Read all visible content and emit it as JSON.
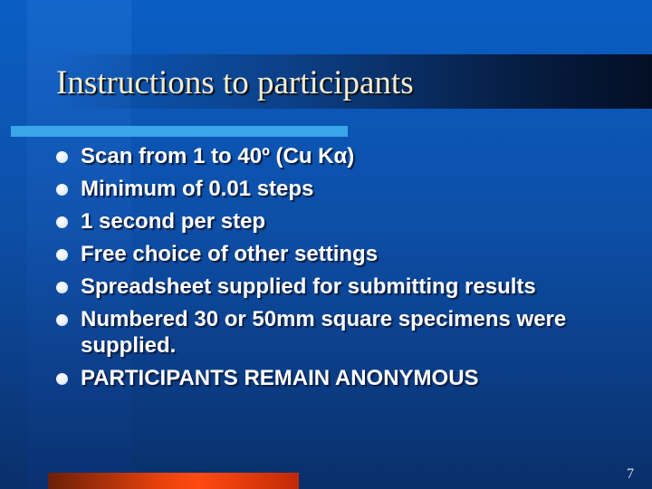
{
  "slide": {
    "title": "Instructions to participants",
    "bullets": [
      "Scan from 1 to 40º (Cu Kα)",
      "Minimum of 0.01 steps",
      "1 second per step",
      "Free choice of other settings",
      "Spreadsheet supplied for submitting results",
      "Numbered 30 or 50mm square specimens were supplied.",
      "PARTICIPANTS REMAIN ANONYMOUS"
    ],
    "page_number": "7"
  }
}
